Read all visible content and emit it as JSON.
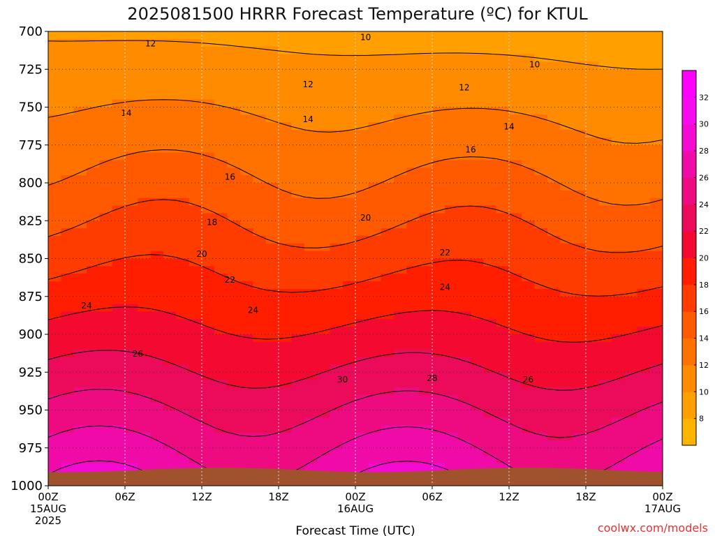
{
  "chart_data": {
    "type": "heatmap",
    "title": "2025081500 HRRR Forecast Temperature (ºC) for KTUL",
    "xlabel": "Forecast Time (UTC)",
    "ylabel": "",
    "units": "ºC",
    "x_ticks": [
      {
        "hours": 0,
        "labels": [
          "00Z",
          "15AUG",
          "2025"
        ]
      },
      {
        "hours": 6,
        "labels": [
          "06Z"
        ]
      },
      {
        "hours": 12,
        "labels": [
          "12Z"
        ]
      },
      {
        "hours": 18,
        "labels": [
          "18Z"
        ]
      },
      {
        "hours": 24,
        "labels": [
          "00Z",
          "16AUG"
        ]
      },
      {
        "hours": 30,
        "labels": [
          "06Z"
        ]
      },
      {
        "hours": 36,
        "labels": [
          "12Z"
        ]
      },
      {
        "hours": 42,
        "labels": [
          "18Z"
        ]
      },
      {
        "hours": 48,
        "labels": [
          "00Z",
          "17AUG"
        ]
      }
    ],
    "xlim_hours": [
      0,
      48
    ],
    "y_ticks": [
      "700",
      "725",
      "750",
      "775",
      "800",
      "825",
      "850",
      "875",
      "900",
      "925",
      "950",
      "975",
      "1000"
    ],
    "ylim_hPa": [
      1000,
      700
    ],
    "grid": true,
    "colorbar": {
      "ticks": [
        "8",
        "10",
        "12",
        "14",
        "16",
        "18",
        "20",
        "22",
        "24",
        "26",
        "28",
        "30",
        "32"
      ],
      "bands": [
        {
          "from": 6,
          "to": 8,
          "color": "#ffb400"
        },
        {
          "from": 8,
          "to": 10,
          "color": "#ffa000"
        },
        {
          "from": 10,
          "to": 12,
          "color": "#ff8c00"
        },
        {
          "from": 12,
          "to": 14,
          "color": "#ff7200"
        },
        {
          "from": 14,
          "to": 16,
          "color": "#ff5a00"
        },
        {
          "from": 16,
          "to": 18,
          "color": "#ff3c00"
        },
        {
          "from": 18,
          "to": 20,
          "color": "#ff1e00"
        },
        {
          "from": 20,
          "to": 22,
          "color": "#f40a30"
        },
        {
          "from": 22,
          "to": 24,
          "color": "#ec0a5a"
        },
        {
          "from": 24,
          "to": 26,
          "color": "#ee0a80"
        },
        {
          "from": 26,
          "to": 28,
          "color": "#f00aa8"
        },
        {
          "from": 28,
          "to": 30,
          "color": "#f40ad0"
        },
        {
          "from": 30,
          "to": 32,
          "color": "#f80aee"
        },
        {
          "from": 32,
          "to": 34,
          "color": "#ff00ff"
        }
      ]
    },
    "ground_color": "#a0522d",
    "contour_levels": [
      10,
      12,
      14,
      16,
      18,
      20,
      22,
      24,
      26,
      28,
      30
    ],
    "contour_labels": [
      {
        "value": "12",
        "hours": 8.0,
        "hPa": 708
      },
      {
        "value": "10",
        "hours": 24.8,
        "hPa": 704
      },
      {
        "value": "10",
        "hours": 38.0,
        "hPa": 722
      },
      {
        "value": "12",
        "hours": 20.3,
        "hPa": 735
      },
      {
        "value": "12",
        "hours": 32.5,
        "hPa": 737
      },
      {
        "value": "14",
        "hours": 6.1,
        "hPa": 754
      },
      {
        "value": "14",
        "hours": 20.3,
        "hPa": 758
      },
      {
        "value": "14",
        "hours": 36.0,
        "hPa": 763
      },
      {
        "value": "16",
        "hours": 14.2,
        "hPa": 796
      },
      {
        "value": "16",
        "hours": 33.0,
        "hPa": 778
      },
      {
        "value": "18",
        "hours": 12.8,
        "hPa": 826
      },
      {
        "value": "20",
        "hours": 24.8,
        "hPa": 823
      },
      {
        "value": "20",
        "hours": 12.0,
        "hPa": 847
      },
      {
        "value": "22",
        "hours": 31.0,
        "hPa": 846
      },
      {
        "value": "22",
        "hours": 14.2,
        "hPa": 864
      },
      {
        "value": "24",
        "hours": 3.0,
        "hPa": 881
      },
      {
        "value": "24",
        "hours": 16.0,
        "hPa": 884
      },
      {
        "value": "24",
        "hours": 31.0,
        "hPa": 869
      },
      {
        "value": "26",
        "hours": 7.0,
        "hPa": 913
      },
      {
        "value": "26",
        "hours": 37.5,
        "hPa": 930
      },
      {
        "value": "28",
        "hours": 30.0,
        "hPa": 929
      },
      {
        "value": "30",
        "hours": 23.0,
        "hPa": 930
      }
    ]
  },
  "credit": "coolwx.com/models"
}
